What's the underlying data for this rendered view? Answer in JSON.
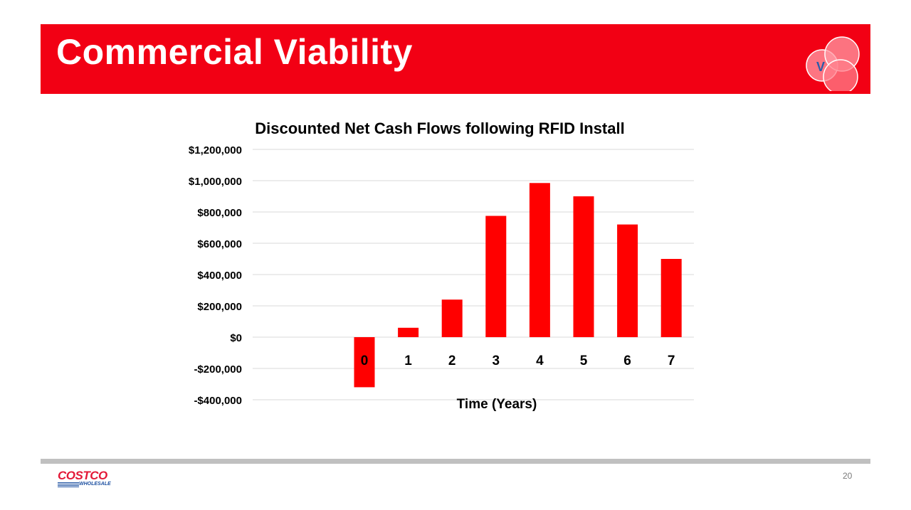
{
  "slide": {
    "title": "Commercial Viability",
    "logo_letter": "V",
    "page_number": "20"
  },
  "brand": {
    "name": "COSTCO",
    "sub": "WHOLESALE"
  },
  "colors": {
    "banner": "#f20014",
    "bar": "#ff0000",
    "logo_text": "#2a5caa"
  },
  "chart_data": {
    "type": "bar",
    "title": "Discounted Net Cash Flows following RFID Install",
    "xlabel": "Time (Years)",
    "ylabel": "",
    "categories": [
      "0",
      "1",
      "2",
      "3",
      "4",
      "5",
      "6",
      "7"
    ],
    "values": [
      -320000,
      60000,
      240000,
      775000,
      985000,
      900000,
      720000,
      500000
    ],
    "ylim": [
      -400000,
      1200000
    ],
    "yticks": [
      1200000,
      1000000,
      800000,
      600000,
      400000,
      200000,
      0,
      -200000,
      -400000
    ],
    "ytick_labels": [
      "$1,200,000",
      "$1,000,000",
      "$800,000",
      "$600,000",
      "$400,000",
      "$200,000",
      "$0",
      "-$200,000",
      "-$400,000"
    ],
    "grid": true,
    "legend": "none"
  }
}
